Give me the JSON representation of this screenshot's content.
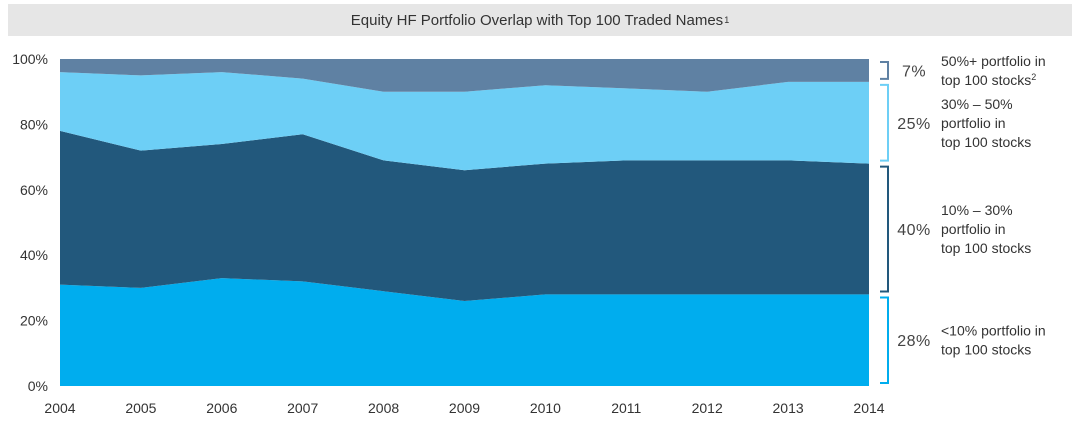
{
  "chart_data": {
    "type": "area",
    "stacked": true,
    "title": "Equity HF Portfolio Overlap with Top 100 Traded Names",
    "title_footnote": "1",
    "x": [
      "2004",
      "2005",
      "2006",
      "2007",
      "2008",
      "2009",
      "2010",
      "2011",
      "2012",
      "2013",
      "2014"
    ],
    "ylim": [
      0,
      100
    ],
    "yticks": [
      "0%",
      "20%",
      "40%",
      "60%",
      "80%",
      "100%"
    ],
    "series": [
      {
        "name": "<10% portfolio in top 100 stocks",
        "color": "#00adee",
        "values": [
          31,
          30,
          33,
          32,
          29,
          26,
          28,
          28,
          28,
          28,
          28
        ]
      },
      {
        "name": "10% – 30% portfolio in top 100 stocks",
        "color": "#22587c",
        "values": [
          47,
          42,
          41,
          45,
          40,
          40,
          40,
          41,
          41,
          41,
          40
        ]
      },
      {
        "name": "30% – 50% portfolio in top 100 stocks",
        "color": "#6dcff6",
        "values": [
          18,
          23,
          22,
          17,
          21,
          24,
          24,
          22,
          21,
          24,
          25
        ]
      },
      {
        "name": "50%+ portfolio in top 100 stocks",
        "color": "#5f81a3",
        "values": [
          4,
          5,
          4,
          6,
          10,
          10,
          8,
          9,
          10,
          7,
          7
        ]
      }
    ],
    "annotations": [
      {
        "pct": "28%",
        "lines": [
          "<10% portfolio in",
          "top 100 stocks"
        ],
        "bracket_color": "#00adee"
      },
      {
        "pct": "40%",
        "lines": [
          "10% – 30%",
          "portfolio in",
          "top 100 stocks"
        ],
        "bracket_color": "#22587c"
      },
      {
        "pct": "25%",
        "lines": [
          "30% – 50%",
          "portfolio in",
          "top 100 stocks"
        ],
        "bracket_color": "#6dcff6"
      },
      {
        "pct": "7%",
        "lines": [
          "50%+ portfolio in",
          "top 100 stocks"
        ],
        "footnote": "2",
        "bracket_color": "#5f81a3"
      }
    ]
  }
}
